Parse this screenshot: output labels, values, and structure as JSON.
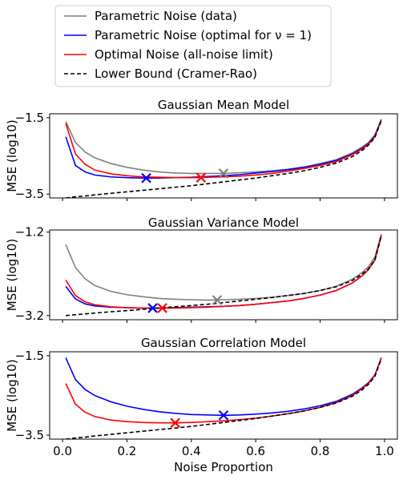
{
  "legend": {
    "entries": [
      {
        "label": "Parametric Noise (data)",
        "color": "#808080",
        "dash": "solid"
      },
      {
        "label": "Parametric Noise (optimal for ν = 1)",
        "color": "#0000ff",
        "dash": "solid"
      },
      {
        "label": "Optimal Noise (all-noise limit)",
        "color": "#ff0000",
        "dash": "solid"
      },
      {
        "label": "Lower Bound (Cramer-Rao)",
        "color": "#000000",
        "dash": "dashed"
      }
    ],
    "placement": "top-center"
  },
  "chart_data": [
    {
      "type": "line",
      "title": "Gaussian Mean Model",
      "ylabel": "MSE (log10)",
      "xlabel": "",
      "xlim": [
        -0.04,
        1.04
      ],
      "ylim": [
        -3.6,
        -1.4
      ],
      "yticks": [
        -1.5,
        -3.5
      ],
      "xticks": [
        0.0,
        0.2,
        0.4,
        0.6,
        0.8,
        1.0
      ],
      "show_xtick_labels": false,
      "grid": false,
      "x": [
        0.01,
        0.04,
        0.07,
        0.1,
        0.15,
        0.2,
        0.25,
        0.3,
        0.35,
        0.4,
        0.45,
        0.5,
        0.55,
        0.6,
        0.65,
        0.7,
        0.75,
        0.8,
        0.85,
        0.9,
        0.93,
        0.95,
        0.97,
        0.99
      ],
      "series": [
        {
          "name": "Parametric Noise (data)",
          "color": "#808080",
          "dash": "solid",
          "values": [
            -1.6,
            -2.15,
            -2.4,
            -2.55,
            -2.7,
            -2.8,
            -2.87,
            -2.92,
            -2.95,
            -2.96,
            -2.96,
            -2.96,
            -2.94,
            -2.92,
            -2.89,
            -2.85,
            -2.79,
            -2.7,
            -2.6,
            -2.42,
            -2.27,
            -2.15,
            -1.95,
            -1.55
          ],
          "marker": {
            "x": 0.5,
            "y": -2.96
          }
        },
        {
          "name": "Parametric Noise (optimal for ν = 1)",
          "color": "#0000ff",
          "dash": "solid",
          "values": [
            -2.0,
            -2.75,
            -2.92,
            -3.0,
            -3.05,
            -3.07,
            -3.08,
            -3.08,
            -3.07,
            -3.06,
            -3.04,
            -3.02,
            -2.99,
            -2.95,
            -2.91,
            -2.86,
            -2.8,
            -2.72,
            -2.62,
            -2.45,
            -2.3,
            -2.18,
            -1.98,
            -1.55
          ],
          "marker": {
            "x": 0.26,
            "y": -3.08
          }
        },
        {
          "name": "Optimal Noise (all-noise limit)",
          "color": "#ff0000",
          "dash": "solid",
          "values": [
            -1.65,
            -2.45,
            -2.72,
            -2.87,
            -2.97,
            -3.02,
            -3.05,
            -3.06,
            -3.07,
            -3.07,
            -3.06,
            -3.05,
            -3.03,
            -3.0,
            -2.96,
            -2.9,
            -2.83,
            -2.75,
            -2.65,
            -2.47,
            -2.32,
            -2.2,
            -2.0,
            -1.57
          ],
          "marker": {
            "x": 0.43,
            "y": -3.07
          }
        },
        {
          "name": "Lower Bound (Cramer-Rao)",
          "color": "#000000",
          "dash": "dashed",
          "values": [
            -3.6,
            -3.57,
            -3.55,
            -3.52,
            -3.48,
            -3.44,
            -3.4,
            -3.36,
            -3.32,
            -3.28,
            -3.23,
            -3.18,
            -3.13,
            -3.08,
            -3.02,
            -2.96,
            -2.89,
            -2.8,
            -2.69,
            -2.52,
            -2.36,
            -2.22,
            -2.02,
            -1.58
          ]
        }
      ]
    },
    {
      "type": "line",
      "title": "Gaussian Variance Model",
      "ylabel": "MSE (log10)",
      "xlabel": "",
      "xlim": [
        -0.04,
        1.04
      ],
      "ylim": [
        -3.3,
        -1.15
      ],
      "yticks": [
        -1.2,
        -3.2
      ],
      "xticks": [
        0.0,
        0.2,
        0.4,
        0.6,
        0.8,
        1.0
      ],
      "show_xtick_labels": false,
      "grid": false,
      "x": [
        0.01,
        0.04,
        0.07,
        0.1,
        0.15,
        0.2,
        0.25,
        0.3,
        0.35,
        0.4,
        0.45,
        0.5,
        0.55,
        0.6,
        0.65,
        0.7,
        0.75,
        0.8,
        0.85,
        0.9,
        0.93,
        0.95,
        0.97,
        0.99
      ],
      "series": [
        {
          "name": "Parametric Noise (data)",
          "color": "#808080",
          "dash": "solid",
          "values": [
            -1.5,
            -2.05,
            -2.32,
            -2.48,
            -2.62,
            -2.7,
            -2.75,
            -2.79,
            -2.81,
            -2.82,
            -2.83,
            -2.82,
            -2.81,
            -2.79,
            -2.76,
            -2.72,
            -2.67,
            -2.6,
            -2.5,
            -2.33,
            -2.17,
            -2.03,
            -1.8,
            -1.25
          ],
          "marker": {
            "x": 0.48,
            "y": -2.83
          }
        },
        {
          "name": "Parametric Noise (optimal for ν = 1)",
          "color": "#0000ff",
          "dash": "solid",
          "values": [
            -2.5,
            -2.8,
            -2.92,
            -2.97,
            -3.0,
            -3.01,
            -3.02,
            -3.02,
            -3.01,
            -3.0,
            -2.99,
            -2.98,
            -2.96,
            -2.93,
            -2.89,
            -2.85,
            -2.79,
            -2.71,
            -2.6,
            -2.42,
            -2.25,
            -2.1,
            -1.87,
            -1.28
          ],
          "marker": {
            "x": 0.28,
            "y": -3.02
          }
        },
        {
          "name": "Optimal Noise (all-noise limit)",
          "color": "#ff0000",
          "dash": "solid",
          "values": [
            -2.35,
            -2.72,
            -2.87,
            -2.94,
            -2.99,
            -3.01,
            -3.02,
            -3.02,
            -3.02,
            -3.01,
            -3.0,
            -2.98,
            -2.96,
            -2.93,
            -2.89,
            -2.85,
            -2.79,
            -2.71,
            -2.6,
            -2.42,
            -2.25,
            -2.1,
            -1.87,
            -1.28
          ],
          "marker": {
            "x": 0.31,
            "y": -3.02
          }
        },
        {
          "name": "Lower Bound (Cramer-Rao)",
          "color": "#000000",
          "dash": "dashed",
          "values": [
            -3.2,
            -3.18,
            -3.16,
            -3.14,
            -3.11,
            -3.08,
            -3.05,
            -3.02,
            -2.99,
            -2.96,
            -2.93,
            -2.89,
            -2.85,
            -2.81,
            -2.77,
            -2.72,
            -2.67,
            -2.6,
            -2.51,
            -2.36,
            -2.21,
            -2.08,
            -1.87,
            -1.3
          ]
        }
      ]
    },
    {
      "type": "line",
      "title": "Gaussian Correlation Model",
      "ylabel": "MSE (log10)",
      "xlabel": "Noise Proportion",
      "xlim": [
        -0.04,
        1.04
      ],
      "ylim": [
        -3.6,
        -1.4
      ],
      "yticks": [
        -1.5,
        -3.5
      ],
      "xticks": [
        0.0,
        0.2,
        0.4,
        0.6,
        0.8,
        1.0
      ],
      "show_xtick_labels": true,
      "grid": false,
      "x": [
        0.01,
        0.04,
        0.07,
        0.1,
        0.15,
        0.2,
        0.25,
        0.3,
        0.35,
        0.4,
        0.45,
        0.5,
        0.55,
        0.6,
        0.65,
        0.7,
        0.75,
        0.8,
        0.85,
        0.9,
        0.93,
        0.95,
        0.97,
        0.99
      ],
      "series": [
        {
          "name": "Parametric Noise (optimal for ν = 1)",
          "color": "#0000ff",
          "dash": "solid",
          "values": [
            -1.55,
            -2.1,
            -2.35,
            -2.5,
            -2.66,
            -2.77,
            -2.85,
            -2.91,
            -2.95,
            -2.98,
            -2.99,
            -3.0,
            -2.99,
            -2.97,
            -2.94,
            -2.9,
            -2.84,
            -2.76,
            -2.65,
            -2.47,
            -2.31,
            -2.18,
            -1.98,
            -1.55
          ],
          "marker": {
            "x": 0.5,
            "y": -3.0
          }
        },
        {
          "name": "Optimal Noise (all-noise limit)",
          "color": "#ff0000",
          "dash": "solid",
          "values": [
            -2.2,
            -2.72,
            -2.92,
            -3.03,
            -3.12,
            -3.16,
            -3.18,
            -3.19,
            -3.19,
            -3.18,
            -3.16,
            -3.14,
            -3.11,
            -3.07,
            -3.02,
            -2.96,
            -2.89,
            -2.8,
            -2.68,
            -2.5,
            -2.33,
            -2.2,
            -1.99,
            -1.56
          ],
          "marker": {
            "x": 0.35,
            "y": -3.19
          }
        },
        {
          "name": "Lower Bound (Cramer-Rao)",
          "color": "#000000",
          "dash": "dashed",
          "values": [
            -3.6,
            -3.57,
            -3.55,
            -3.52,
            -3.48,
            -3.44,
            -3.4,
            -3.36,
            -3.32,
            -3.28,
            -3.23,
            -3.18,
            -3.13,
            -3.08,
            -3.02,
            -2.96,
            -2.89,
            -2.8,
            -2.69,
            -2.52,
            -2.36,
            -2.22,
            -2.02,
            -1.58
          ]
        }
      ]
    }
  ]
}
